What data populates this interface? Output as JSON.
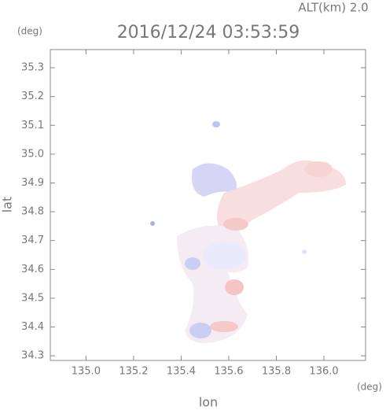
{
  "chart_data": {
    "type": "map",
    "title": "2016/12/24 03:53:59",
    "subtitle": "ALT(km) 2.0",
    "ylabel": "lat",
    "ylabel_unit": "(deg)",
    "xlabel": "lon",
    "xlabel_unit": "(deg)",
    "xlim": [
      134.85,
      136.175
    ],
    "ylim": [
      34.284,
      35.363
    ],
    "xticks": [
      {
        "value": 135.0,
        "label": "135.0"
      },
      135.2,
      135.4,
      135.6,
      135.8,
      {
        "value": 136.0,
        "label": "136.0"
      }
    ],
    "yticks": [
      34.3,
      34.4,
      34.5,
      34.6,
      34.7,
      34.8,
      34.9,
      {
        "value": 35.0,
        "label": "35.0"
      },
      35.1,
      35.2,
      35.3
    ]
  }
}
